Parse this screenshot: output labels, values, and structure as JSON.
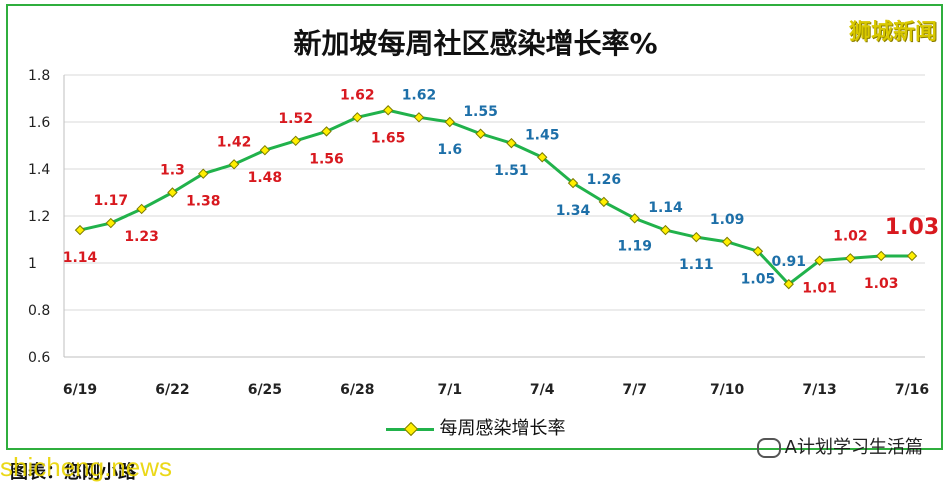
{
  "brand": "狮城新闻",
  "footer": "图表：您刚小路",
  "watermark": "shicheng.news",
  "wechat": "A计划学习生活篇",
  "colors": {
    "line": "#21b24b",
    "marker": "#ffef00",
    "red": "#d8191f",
    "blue": "#1d6fa8",
    "frame": "#2fae3d"
  },
  "chart_data": {
    "type": "line",
    "title": "新加坡每周社区感染增长率%",
    "xlabel": "",
    "ylabel": "",
    "ylim": [
      0.6,
      1.8
    ],
    "yticks": [
      "0.6",
      "0.8",
      "1",
      "1.2",
      "1.4",
      "1.6",
      "1.8"
    ],
    "grid": true,
    "legend_position": "bottom",
    "x": [
      "6/19",
      "6/20",
      "6/21",
      "6/22",
      "6/23",
      "6/24",
      "6/25",
      "6/26",
      "6/27",
      "6/28",
      "6/29",
      "6/30",
      "7/1",
      "7/2",
      "7/3",
      "7/4",
      "7/5",
      "7/6",
      "7/7",
      "7/8",
      "7/9",
      "7/10",
      "7/11",
      "7/12",
      "7/13",
      "7/14",
      "7/15",
      "7/16"
    ],
    "xticks": [
      "6/19",
      "6/22",
      "6/25",
      "6/28",
      "7/1",
      "7/4",
      "7/7",
      "7/10",
      "7/13",
      "7/16"
    ],
    "series": [
      {
        "name": "每周感染增长率",
        "values": [
          1.14,
          1.17,
          1.23,
          1.3,
          1.38,
          1.42,
          1.48,
          1.52,
          1.56,
          1.62,
          1.65,
          1.62,
          1.6,
          1.55,
          1.51,
          1.45,
          1.34,
          1.26,
          1.19,
          1.14,
          1.11,
          1.09,
          1.05,
          0.91,
          1.01,
          1.02,
          1.03,
          1.03
        ]
      }
    ],
    "data_labels": [
      {
        "text": "1.14",
        "index": 0,
        "pos": "below",
        "color": "red"
      },
      {
        "text": "1.17",
        "index": 1,
        "pos": "above",
        "color": "red"
      },
      {
        "text": "1.23",
        "index": 2,
        "pos": "below",
        "color": "red"
      },
      {
        "text": "1.3",
        "index": 3,
        "pos": "above",
        "color": "red"
      },
      {
        "text": "1.38",
        "index": 4,
        "pos": "below",
        "color": "red"
      },
      {
        "text": "1.42",
        "index": 5,
        "pos": "above",
        "color": "red"
      },
      {
        "text": "1.48",
        "index": 6,
        "pos": "below",
        "color": "red"
      },
      {
        "text": "1.52",
        "index": 7,
        "pos": "above",
        "color": "red"
      },
      {
        "text": "1.56",
        "index": 8,
        "pos": "below",
        "color": "red"
      },
      {
        "text": "1.62",
        "index": 9,
        "pos": "above",
        "color": "red"
      },
      {
        "text": "1.65",
        "index": 10,
        "pos": "below",
        "color": "red"
      },
      {
        "text": "1.62",
        "index": 11,
        "pos": "above",
        "color": "blue"
      },
      {
        "text": "1.6",
        "index": 12,
        "pos": "below",
        "color": "blue"
      },
      {
        "text": "1.55",
        "index": 13,
        "pos": "above",
        "color": "blue"
      },
      {
        "text": "1.51",
        "index": 14,
        "pos": "below",
        "color": "blue"
      },
      {
        "text": "1.45",
        "index": 15,
        "pos": "above",
        "color": "blue"
      },
      {
        "text": "1.34",
        "index": 16,
        "pos": "below",
        "color": "blue"
      },
      {
        "text": "1.26",
        "index": 17,
        "pos": "above",
        "color": "blue"
      },
      {
        "text": "1.19",
        "index": 18,
        "pos": "below",
        "color": "blue"
      },
      {
        "text": "1.14",
        "index": 19,
        "pos": "above",
        "color": "blue"
      },
      {
        "text": "1.11",
        "index": 20,
        "pos": "below",
        "color": "blue"
      },
      {
        "text": "1.09",
        "index": 21,
        "pos": "above",
        "color": "blue"
      },
      {
        "text": "1.05",
        "index": 22,
        "pos": "below",
        "color": "blue"
      },
      {
        "text": "0.91",
        "index": 23,
        "pos": "above",
        "color": "blue"
      },
      {
        "text": "1.01",
        "index": 24,
        "pos": "below",
        "color": "red"
      },
      {
        "text": "1.02",
        "index": 25,
        "pos": "above",
        "color": "red"
      },
      {
        "text": "1.03",
        "index": 26,
        "pos": "below",
        "color": "red"
      },
      {
        "text": "1.03",
        "index": 27,
        "pos": "above",
        "color": "red",
        "emphasis": true
      }
    ]
  }
}
